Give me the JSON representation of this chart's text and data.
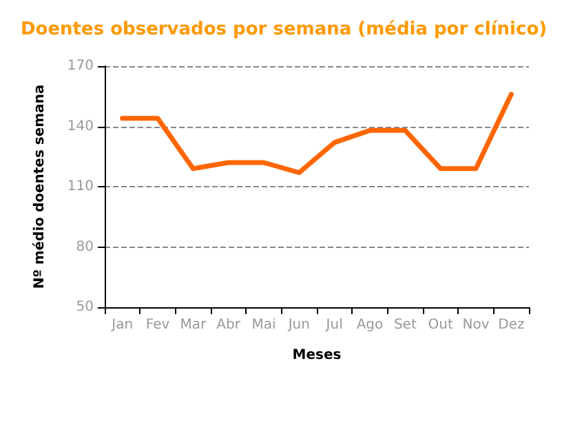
{
  "chart_data": {
    "type": "line",
    "title": "Doentes observados por semana (média por clínico)",
    "xlabel": "Meses",
    "ylabel": "Nº médio doentes semana",
    "categories": [
      "Jan",
      "Fev",
      "Mar",
      "Abr",
      "Mai",
      "Jun",
      "Jul",
      "Ago",
      "Set",
      "Out",
      "Nov",
      "Dez"
    ],
    "series": [
      {
        "color": "#ff6600",
        "values": [
          144,
          144,
          119,
          122,
          122,
          117,
          132,
          138,
          138,
          119,
          119,
          156
        ]
      }
    ],
    "ylim": [
      50,
      170
    ],
    "yticks": [
      50,
      80,
      110,
      140,
      170
    ],
    "grid": "y",
    "marker": "none",
    "line_style": "solid"
  }
}
